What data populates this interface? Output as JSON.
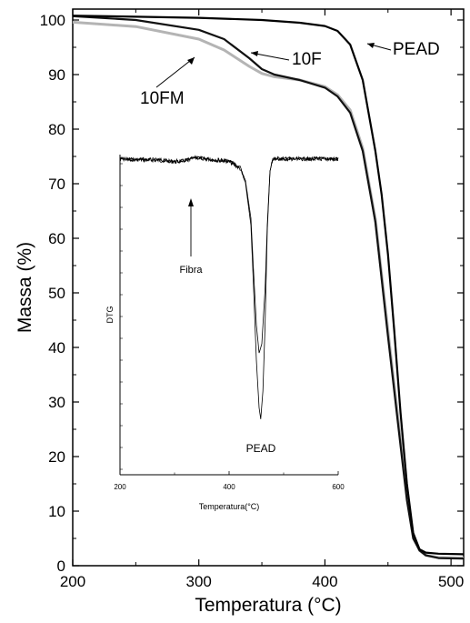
{
  "chart_data": [
    {
      "type": "line",
      "xlabel": "Temperatura (°C)",
      "ylabel": "Massa (%)",
      "xlim": [
        200,
        510
      ],
      "ylim": [
        0,
        102
      ],
      "xticks": [
        "200",
        "300",
        "400",
        "500"
      ],
      "yticks": [
        "0",
        "10",
        "20",
        "30",
        "40",
        "50",
        "60",
        "70",
        "80",
        "90",
        "100"
      ],
      "grid": false,
      "series": [
        {
          "name": "PEAD",
          "color": "#000000",
          "x": [
            200,
            250,
            300,
            350,
            380,
            400,
            410,
            420,
            430,
            440,
            445,
            450,
            455,
            460,
            465,
            470,
            475,
            480,
            490,
            510
          ],
          "y": [
            100.8,
            100.6,
            100.4,
            100.0,
            99.5,
            98.9,
            98.0,
            95.5,
            89,
            76,
            68,
            57,
            43,
            28,
            15,
            6,
            3,
            2.4,
            2.2,
            2.1
          ]
        },
        {
          "name": "10F",
          "color": "#111111",
          "x": [
            200,
            250,
            300,
            320,
            340,
            350,
            360,
            380,
            400,
            410,
            420,
            430,
            440,
            450,
            455,
            460,
            465,
            470,
            475,
            480,
            490,
            510
          ],
          "y": [
            100.7,
            100.0,
            98.2,
            96.5,
            93.0,
            91.0,
            90.0,
            89.0,
            87.6,
            86.0,
            83.0,
            76.0,
            63.0,
            42.0,
            32.0,
            22.0,
            12.0,
            5.0,
            2.8,
            1.9,
            1.4,
            1.3
          ]
        },
        {
          "name": "10FM",
          "color": "#b4b4b4",
          "x": [
            200,
            250,
            300,
            320,
            340,
            350,
            360,
            380,
            400,
            410,
            420,
            430,
            440,
            450,
            455,
            460,
            465,
            470,
            475,
            480,
            490,
            510
          ],
          "y": [
            99.6,
            98.8,
            96.5,
            94.5,
            91.5,
            90.2,
            89.6,
            89.0,
            87.8,
            86.3,
            83.5,
            76.5,
            63.5,
            43.0,
            33.0,
            23.0,
            13.0,
            5.5,
            2.8,
            1.9,
            1.5,
            1.4
          ]
        }
      ],
      "annotations": [
        "PEAD",
        "10F",
        "10FM"
      ]
    },
    {
      "type": "line",
      "xlabel": "Temperatura(°C)",
      "ylabel": "DTG",
      "xlim": [
        200,
        600
      ],
      "xticks": [
        "200",
        "400",
        "600"
      ],
      "series": [
        {
          "color": "#000000",
          "x": [
            200,
            230,
            260,
            280,
            300,
            320,
            340,
            360,
            380,
            400,
            420,
            430,
            440,
            445,
            450,
            455,
            458,
            462,
            466,
            470,
            475,
            480,
            490,
            520,
            560,
            600
          ],
          "y": [
            0,
            -0.2,
            -0.4,
            -0.6,
            -1.2,
            -0.6,
            0.6,
            0,
            -0.5,
            -1.0,
            -4,
            -10,
            -28,
            -55,
            -85,
            -105,
            -110,
            -98,
            -70,
            -30,
            -5,
            0,
            0.2,
            0,
            0.2,
            0
          ]
        },
        {
          "color": "#000000",
          "x": [
            200,
            230,
            260,
            280,
            300,
            320,
            340,
            360,
            380,
            400,
            420,
            430,
            440,
            445,
            450,
            455,
            460,
            466,
            470,
            475,
            480,
            490,
            520,
            560,
            600
          ],
          "y": [
            0,
            -0.1,
            -0.3,
            -0.5,
            -1.0,
            -0.5,
            0.5,
            0,
            -0.4,
            -0.8,
            -3.5,
            -9,
            -25,
            -48,
            -70,
            -82,
            -78,
            -55,
            -28,
            -5,
            0,
            0.2,
            0,
            0.2,
            0
          ]
        }
      ],
      "annotations": [
        "Fibra",
        "PEAD"
      ]
    }
  ]
}
